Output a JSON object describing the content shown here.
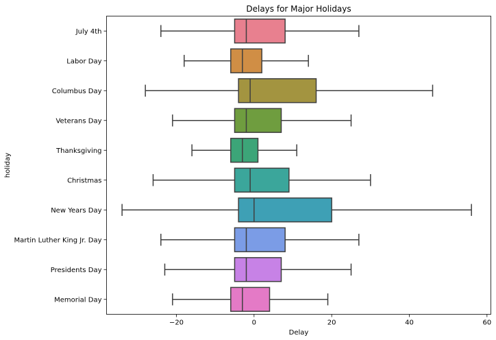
{
  "chart_data": {
    "type": "box",
    "orientation": "horizontal",
    "title": "Delays for Major Holidays",
    "xlabel": "Delay",
    "ylabel": "holiday",
    "xlim": [
      -38,
      61
    ],
    "x_ticks": [
      -20,
      0,
      20,
      40,
      60
    ],
    "x_tick_labels": [
      "−20",
      "0",
      "20",
      "40",
      "60"
    ],
    "grid": false,
    "legend": "none",
    "categories": [
      "July 4th",
      "Labor Day",
      "Columbus Day",
      "Veterans Day",
      "Thanksgiving",
      "Christmas",
      "New Years Day",
      "Martin Luther King Jr. Day",
      "Presidents Day",
      "Memorial Day"
    ],
    "boxes": [
      {
        "category": "July 4th",
        "whisker_low": -24,
        "q1": -5,
        "median": -2,
        "q3": 8,
        "whisker_high": 27,
        "color": "#e8808f"
      },
      {
        "category": "Labor Day",
        "whisker_low": -18,
        "q1": -6,
        "median": -3,
        "q3": 2,
        "whisker_high": 14,
        "color": "#d08e45"
      },
      {
        "category": "Columbus Day",
        "whisker_low": -28,
        "q1": -4,
        "median": -1,
        "q3": 16,
        "whisker_high": 46,
        "color": "#a39440"
      },
      {
        "category": "Veterans Day",
        "whisker_low": -21,
        "q1": -5,
        "median": -2,
        "q3": 7,
        "whisker_high": 25,
        "color": "#6f9d3f"
      },
      {
        "category": "Thanksgiving",
        "whisker_low": -16,
        "q1": -6,
        "median": -3,
        "q3": 1,
        "whisker_high": 11,
        "color": "#3ca578"
      },
      {
        "category": "Christmas",
        "whisker_low": -26,
        "q1": -5,
        "median": -1,
        "q3": 9,
        "whisker_high": 30,
        "color": "#3ba69b"
      },
      {
        "category": "New Years Day",
        "whisker_low": -34,
        "q1": -4,
        "median": 0,
        "q3": 20,
        "whisker_high": 56,
        "color": "#3ea0b5"
      },
      {
        "category": "Martin Luther King Jr. Day",
        "whisker_low": -24,
        "q1": -5,
        "median": -2,
        "q3": 8,
        "whisker_high": 27,
        "color": "#7b9ce6"
      },
      {
        "category": "Presidents Day",
        "whisker_low": -23,
        "q1": -5,
        "median": -2,
        "q3": 7,
        "whisker_high": 25,
        "color": "#c782e6"
      },
      {
        "category": "Memorial Day",
        "whisker_low": -21,
        "q1": -6,
        "median": -3,
        "q3": 4,
        "whisker_high": 19,
        "color": "#e47ac6"
      }
    ]
  }
}
